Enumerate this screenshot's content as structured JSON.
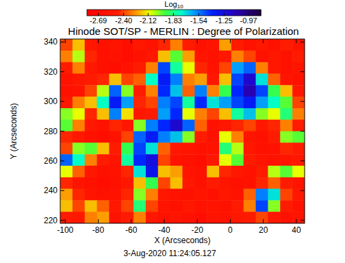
{
  "chart_data": {
    "type": "heatmap",
    "title": "Hinode SOT/SP - MERLIN : Degree of Polarization",
    "x_label": "X (Arcseconds)",
    "y_label": "Y (Arcseconds)",
    "annotations": [
      "3-Aug-2020 11:24:05.127"
    ],
    "xlim": [
      -103,
      45
    ],
    "ylim": [
      218,
      342
    ],
    "xticks": [
      -100,
      -80,
      -60,
      -40,
      -20,
      0,
      20,
      40
    ],
    "yticks": [
      220,
      240,
      260,
      280,
      300,
      320,
      340
    ],
    "x": [
      -99.3,
      -91.9,
      -84.5,
      -77.1,
      -69.7,
      -62.3,
      -54.9,
      -47.5,
      -40.1,
      -32.7,
      -25.3,
      -17.9,
      -10.5,
      -3.1,
      4.3,
      11.7,
      19.1,
      26.5,
      33.9,
      41.3
    ],
    "y": [
      338.1,
      330.4,
      322.6,
      314.9,
      307.1,
      299.4,
      291.6,
      283.9,
      276.1,
      268.4,
      260.6,
      252.9,
      245.1,
      237.4,
      229.6,
      221.9
    ],
    "z": [
      [
        -2.4,
        -2.2,
        -2.55,
        -2.62,
        -2.58,
        -2.65,
        -2.55,
        -2.6,
        -2.45,
        -2.3,
        -2.5,
        -2.62,
        -2.58,
        -2.25,
        -2.5,
        -2.6,
        -2.55,
        -2.62,
        -2.48,
        -2.58
      ],
      [
        -2.3,
        -2.05,
        -2.45,
        -2.62,
        -2.6,
        -2.66,
        -2.62,
        -2.55,
        -2.2,
        -1.95,
        -2.25,
        -2.58,
        -2.62,
        -2.55,
        -2.3,
        -2.4,
        -2.6,
        -2.55,
        -2.62,
        -2.5
      ],
      [
        -2.5,
        -2.3,
        -2.55,
        -2.62,
        -2.65,
        -2.6,
        -2.5,
        -2.3,
        -1.45,
        -1.8,
        -2.1,
        -2.45,
        -2.6,
        -2.4,
        -1.6,
        -1.5,
        -2.3,
        -2.55,
        -2.62,
        -2.58
      ],
      [
        -2.6,
        -2.55,
        -2.5,
        -2.45,
        -2.2,
        -2.4,
        -2.35,
        -1.75,
        -1.35,
        -1.55,
        -2.3,
        -2.25,
        -2.55,
        -2.2,
        -1.45,
        -1.2,
        -1.7,
        -2.35,
        -2.58,
        -2.62
      ],
      [
        -2.62,
        -2.58,
        -2.4,
        -2.05,
        -1.5,
        -2.0,
        -2.5,
        -2.3,
        -1.4,
        -1.65,
        -2.35,
        -1.55,
        -2.3,
        -1.9,
        -1.4,
        -1.1,
        -1.45,
        -1.9,
        -2.2,
        -2.55
      ],
      [
        -2.55,
        -2.3,
        -2.2,
        -1.75,
        -1.35,
        -1.6,
        -2.45,
        -2.4,
        -1.55,
        -1.45,
        -1.8,
        -1.4,
        -1.7,
        -1.6,
        -1.45,
        -1.35,
        -1.6,
        -1.75,
        -1.95,
        -2.4
      ],
      [
        -2.0,
        -2.1,
        -2.45,
        -2.2,
        -1.55,
        -2.15,
        -2.55,
        -2.5,
        -1.6,
        -1.4,
        -2.1,
        -2.3,
        -2.4,
        -2.2,
        -1.8,
        -1.65,
        -2.0,
        -2.1,
        -1.85,
        -2.3
      ],
      [
        -1.95,
        -2.3,
        -2.55,
        -2.6,
        -2.45,
        -2.55,
        -2.0,
        -1.55,
        -1.4,
        -1.2,
        -1.5,
        -2.35,
        -2.6,
        -2.55,
        -2.45,
        -2.4,
        -2.55,
        -2.45,
        -2.3,
        -2.5
      ],
      [
        -2.45,
        -2.55,
        -2.62,
        -2.65,
        -2.6,
        -2.4,
        -1.5,
        -1.35,
        -1.55,
        -1.65,
        -2.0,
        -2.5,
        -2.62,
        -2.1,
        -2.3,
        -2.58,
        -2.62,
        -2.5,
        -2.0,
        -1.95
      ],
      [
        -2.4,
        -2.0,
        -1.95,
        -2.2,
        -2.5,
        -1.9,
        -1.45,
        -1.7,
        -2.35,
        -2.55,
        -2.58,
        -2.62,
        -2.6,
        -1.85,
        -2.05,
        -2.55,
        -2.62,
        -2.6,
        -2.45,
        -2.5
      ],
      [
        -1.5,
        -1.75,
        -2.3,
        -2.5,
        -2.58,
        -1.8,
        -1.4,
        -1.25,
        -2.4,
        -2.6,
        -2.62,
        -2.65,
        -2.55,
        -2.1,
        -1.95,
        -2.5,
        -2.58,
        -2.62,
        -2.58,
        -2.55
      ],
      [
        -2.1,
        -2.35,
        -2.55,
        -2.62,
        -2.6,
        -2.45,
        -1.7,
        -1.3,
        -2.2,
        -2.25,
        -2.58,
        -2.62,
        -2.2,
        -2.45,
        -2.55,
        -2.6,
        -2.5,
        -2.05,
        -1.95,
        -2.1
      ],
      [
        -2.45,
        -2.58,
        -2.62,
        -2.65,
        -2.62,
        -2.55,
        -2.2,
        -1.9,
        -2.4,
        -2.2,
        -2.55,
        -2.62,
        -2.5,
        -2.58,
        -2.62,
        -2.6,
        -2.45,
        -2.35,
        -2.5,
        -2.58
      ],
      [
        -2.25,
        -2.45,
        -2.58,
        -2.62,
        -2.6,
        -2.45,
        -2.0,
        -2.3,
        -2.55,
        -2.6,
        -2.62,
        -2.58,
        -2.62,
        -2.55,
        -2.6,
        -2.35,
        -1.55,
        -1.7,
        -2.4,
        -2.55
      ],
      [
        -2.2,
        -2.4,
        -2.2,
        -2.35,
        -2.55,
        -2.4,
        -1.85,
        -2.4,
        -2.58,
        -2.62,
        -2.55,
        -2.6,
        -2.58,
        -2.62,
        -2.5,
        -2.3,
        -1.45,
        -2.0,
        -2.5,
        -2.6
      ],
      [
        -2.5,
        -2.55,
        -2.3,
        -2.25,
        -2.6,
        -2.5,
        -2.3,
        -2.55,
        -2.62,
        -2.58,
        -2.62,
        -2.65,
        -2.58,
        -2.6,
        -2.55,
        -2.5,
        -2.4,
        -2.55,
        -2.62,
        -2.58
      ]
    ],
    "colorbar": {
      "label": "Log10",
      "range": [
        -2.82,
        -0.83
      ],
      "ticks": [
        -2.69,
        {
          "value": -2.4,
          "label": "-2.40"
        },
        -2.12,
        -1.83,
        -1.54,
        -1.25,
        -0.97
      ]
    }
  }
}
